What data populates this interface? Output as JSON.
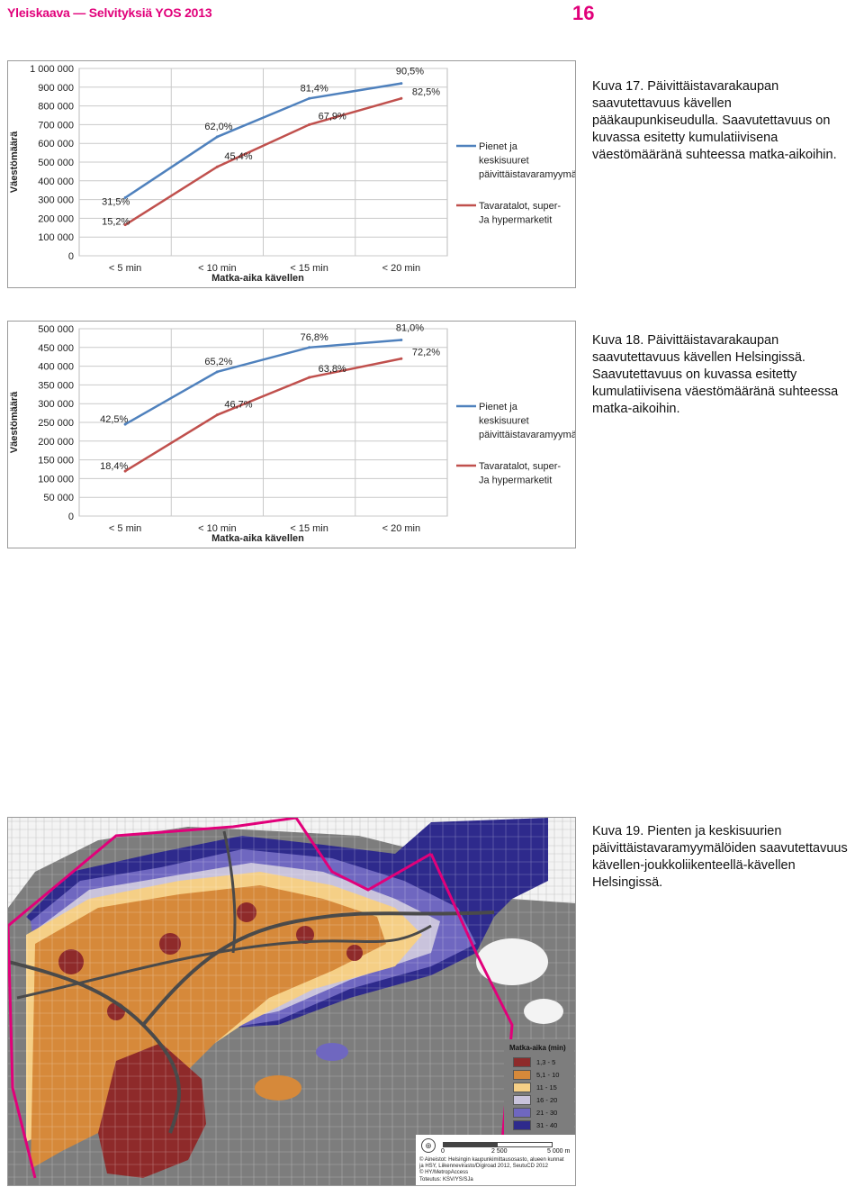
{
  "header": {
    "title": "Yleiskaava — Selvityksiä YOS 2013",
    "page_number": "16"
  },
  "colors": {
    "brand": "#e1007a",
    "blue": "#4f81bd",
    "red": "#c0504d"
  },
  "figures": [
    {
      "caption": "Kuva 17. Päivittäistavarakaupan saavutettavuus kävellen pääkaupunkiseudulla. Saavutettavuus on kuvassa esitetty kumulatiivisena väestömääränä suhteessa matka-aikoihin."
    },
    {
      "caption": "Kuva 18. Päivittäistavarakaupan saavutettavuus kävellen Helsingissä. Saavutettavuus on kuvassa esitetty kumulatiivisena väestömääränä suhteessa matka-aikoihin."
    },
    {
      "caption": "Kuva 19. Pienten ja keskisuurien päivittäistavaramyymälöiden saavutettavuus kävellen-joukkoliikenteellä-kävellen Helsingissä."
    }
  ],
  "chart_data": [
    {
      "type": "line",
      "xlabel": "Matka-aika kävellen",
      "ylabel": "Väestömäärä",
      "categories": [
        "< 5 min",
        "< 10 min",
        "< 15 min",
        "< 20 min"
      ],
      "ylim": [
        0,
        1000000
      ],
      "yticks": [
        0,
        100000,
        200000,
        300000,
        400000,
        500000,
        600000,
        700000,
        800000,
        900000,
        1000000
      ],
      "ytick_labels": [
        "0",
        "100 000",
        "200 000",
        "300 000",
        "400 000",
        "500 000",
        "600 000",
        "700 000",
        "800 000",
        "900 000",
        "1 000 000"
      ],
      "legend_position": "right",
      "grid": true,
      "series": [
        {
          "name": "Pienet ja keskisuuret päivittäistavaramyymälät",
          "color": "#4f81bd",
          "values": [
            310000,
            635000,
            840000,
            920000
          ],
          "labels": [
            "31,5%",
            "62,0%",
            "81,4%",
            "90,5%"
          ]
        },
        {
          "name": "Tavaratalot, super- Ja hypermarketit",
          "color": "#c0504d",
          "values": [
            165000,
            475000,
            700000,
            840000
          ],
          "labels": [
            "15,2%",
            "45,4%",
            "67,9%",
            "82,5%"
          ]
        }
      ]
    },
    {
      "type": "line",
      "xlabel": "Matka-aika kävellen",
      "ylabel": "Väestömäärä",
      "categories": [
        "< 5 min",
        "< 10 min",
        "< 15 min",
        "< 20 min"
      ],
      "ylim": [
        0,
        500000
      ],
      "yticks": [
        0,
        50000,
        100000,
        150000,
        200000,
        250000,
        300000,
        350000,
        400000,
        450000,
        500000
      ],
      "ytick_labels": [
        "0",
        "50 000",
        "100 000",
        "150 000",
        "200 000",
        "250 000",
        "300 000",
        "350 000",
        "400 000",
        "450 000",
        "500 000"
      ],
      "legend_position": "right",
      "grid": true,
      "series": [
        {
          "name": "Pienet ja keskisuuret päivittäistavaramyymälät",
          "color": "#4f81bd",
          "values": [
            245000,
            385000,
            450000,
            470000
          ],
          "labels": [
            "42,5%",
            "65,2%",
            "76,8%",
            "81,0%"
          ]
        },
        {
          "name": "Tavaratalot, super- Ja hypermarketit",
          "color": "#c0504d",
          "values": [
            120000,
            270000,
            370000,
            420000
          ],
          "labels": [
            "18,4%",
            "46,7%",
            "63,8%",
            "72,2%"
          ]
        }
      ]
    }
  ],
  "map": {
    "legend_title": "Matka-aika (min)",
    "legend": [
      {
        "label": "1,3 - 5",
        "color": "#8e2a2a"
      },
      {
        "label": "5,1 - 10",
        "color": "#d6893a"
      },
      {
        "label": "11 - 15",
        "color": "#f5cf86"
      },
      {
        "label": "16 - 20",
        "color": "#c9c3dc"
      },
      {
        "label": "21 - 30",
        "color": "#6f67c0"
      },
      {
        "label": "31 - 40",
        "color": "#2e2a8c"
      }
    ],
    "scale_labels": [
      "0",
      "2 500",
      "5 000 m"
    ],
    "credits": [
      "© Aineistot: Helsingin kaupunkimittausosasto, alueen kunnat",
      "ja HSY, Liikennevirasto/Digiroad 2012, SeutuCD 2012",
      "© HY/MetropAccess",
      "Toteutus: KSV/YS/SJa"
    ]
  }
}
